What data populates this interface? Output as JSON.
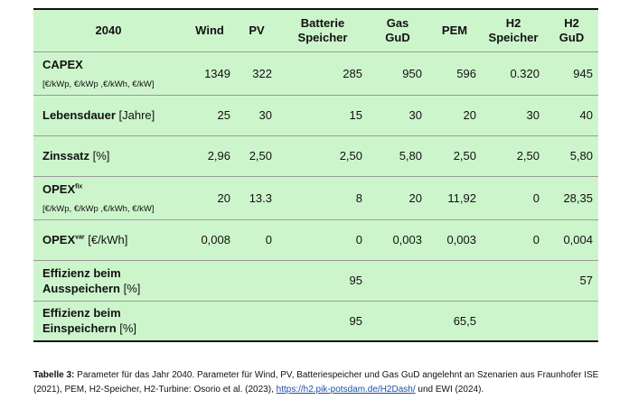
{
  "table": {
    "header": {
      "year": "2040",
      "cols": [
        "Wind",
        "PV",
        "Batterie Speicher",
        "Gas GuD",
        "PEM",
        "H2 Speicher",
        "H2 GuD"
      ],
      "cols_line1": [
        "Wind",
        "PV",
        "Batterie",
        "Gas",
        "PEM",
        "H2",
        "H2"
      ],
      "cols_line2": [
        "",
        "",
        "Speicher",
        "GuD",
        "",
        "Speicher",
        "GuD"
      ]
    },
    "rows": [
      {
        "label": "CAPEX",
        "sup": "",
        "unit": "",
        "sub": "[€/kWp, €/kWp ,€/kWh, €/kW]",
        "values": [
          "1349",
          "322",
          "285",
          "950",
          "596",
          "0.320",
          "945"
        ]
      },
      {
        "label": "Lebensdauer",
        "sup": "",
        "unit": " [Jahre]",
        "sub": "",
        "values": [
          "25",
          "30",
          "15",
          "30",
          "20",
          "30",
          "40"
        ]
      },
      {
        "label": "Zinssatz",
        "sup": "",
        "unit": " [%]",
        "sub": "",
        "values": [
          "2,96",
          "2,50",
          "2,50",
          "5,80",
          "2,50",
          "2,50",
          "5,80"
        ]
      },
      {
        "label": "OPEX",
        "sup": "fix",
        "unit": "",
        "sub": "[€/kWp, €/kWp ,€/kWh, €/kW]",
        "values": [
          "20",
          "13.3",
          "8",
          "20",
          "11,92",
          "0",
          "28,35"
        ]
      },
      {
        "label": "OPEX",
        "sup": "var",
        "unit": " [€/kWh]",
        "sub": "",
        "values": [
          "0,008",
          "0",
          "0",
          "0,003",
          "0,003",
          "0",
          "0,004"
        ]
      },
      {
        "label_line1": "Effizienz beim",
        "label_line2": "Ausspeichern",
        "unit": " [%]",
        "values": [
          "",
          "",
          "95",
          "",
          "",
          "",
          "57"
        ]
      },
      {
        "label_line1": "Effizienz beim",
        "label_line2": "Einspeichern",
        "unit": " [%]",
        "values": [
          "",
          "",
          "95",
          "",
          "65,5",
          "",
          ""
        ]
      }
    ]
  },
  "caption": {
    "bold": "Tabelle 3:",
    "text1": " Parameter für das Jahr 2040. Parameter für Wind, PV, Batteriespeicher und Gas GuD angelehnt an Szenarien aus Fraunhofer ISE (2021), PEM, H2-Speicher, H2-Turbine: Osorio et al. (2023), ",
    "link": "https://h2.pik-potsdam.de/H2Dash/",
    "text2": " und EWI (2024)."
  }
}
